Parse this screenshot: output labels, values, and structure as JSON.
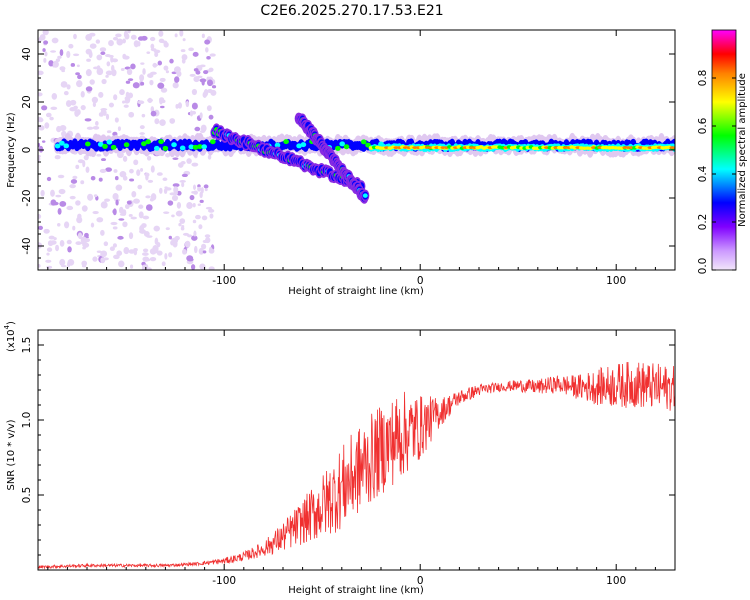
{
  "title": "C2E6.2025.270.17.53.E21",
  "chart_data": [
    {
      "type": "heatmap",
      "title": "C2E6.2025.270.17.53.E21",
      "xlabel": "Height of straight line (km)",
      "ylabel": "Frequency (Hz)",
      "xlim": [
        -195,
        130
      ],
      "ylim": [
        -50,
        50
      ],
      "xticks": [
        -100,
        0,
        100
      ],
      "xtick_labels": [
        "-100",
        "0",
        "100"
      ],
      "yticks": [
        -40,
        -20,
        0,
        20,
        40
      ],
      "ytick_labels": [
        "-40",
        "-20",
        "0",
        "20",
        "40"
      ],
      "colorbar": {
        "label": "Normalized spectral amplitude",
        "range": [
          0,
          1
        ],
        "ticks": [
          0,
          0.2,
          0.4,
          0.6,
          0.8
        ],
        "tick_labels": [
          "0.0",
          "0.2",
          "0.4",
          "0.6",
          "0.8"
        ],
        "colormap": [
          "#e0c8f0",
          "#8a2be2",
          "#0000ff",
          "#00ffff",
          "#00ff00",
          "#ffff00",
          "#ff8000",
          "#ff0000",
          "#ff00ff"
        ]
      },
      "features": [
        {
          "name": "main-band",
          "x": [
            -185,
            130
          ],
          "freq_hz": [
            2,
            2
          ],
          "amplitude": "0.2-0.6"
        },
        {
          "name": "high-amplitude-segment",
          "x": [
            -25,
            130
          ],
          "freq_hz": [
            1,
            1
          ],
          "amplitude": "0.6-0.9"
        },
        {
          "name": "descending-branch-1",
          "x": [
            -105,
            -30
          ],
          "freq_hz": [
            8,
            -15
          ],
          "amplitude": "0.3-0.5"
        },
        {
          "name": "descending-branch-2",
          "x": [
            -62,
            -28
          ],
          "freq_hz": [
            14,
            -20
          ],
          "amplitude": "0.3-0.5"
        },
        {
          "name": "diffuse-noise-region",
          "x": [
            -195,
            -105
          ],
          "freq_hz": [
            -50,
            50
          ],
          "amplitude": "0.0-0.1"
        }
      ]
    },
    {
      "type": "line",
      "xlabel": "Height of straight line (km)",
      "ylabel": "SNR (10 * v/v)",
      "multiplier_label": "(x10",
      "multiplier_exp": "4",
      "xlim": [
        -195,
        130
      ],
      "ylim": [
        0,
        1.6
      ],
      "xticks": [
        -100,
        0,
        100
      ],
      "xtick_labels": [
        "-100",
        "0",
        "100"
      ],
      "yticks": [
        0.5,
        1.0,
        1.5
      ],
      "ytick_labels": [
        "0.5",
        "1.0",
        "1.5"
      ],
      "color": "#f03030",
      "series": [
        {
          "name": "SNR",
          "x": [
            -195,
            -170,
            -150,
            -130,
            -115,
            -100,
            -90,
            -80,
            -70,
            -60,
            -50,
            -40,
            -30,
            -20,
            -10,
            0,
            10,
            20,
            30,
            40,
            50,
            60,
            70,
            80,
            90,
            100,
            110,
            120,
            130
          ],
          "y": [
            0.02,
            0.03,
            0.03,
            0.03,
            0.04,
            0.06,
            0.09,
            0.14,
            0.22,
            0.32,
            0.42,
            0.55,
            0.68,
            0.8,
            0.9,
            0.95,
            1.05,
            1.15,
            1.2,
            1.22,
            1.23,
            1.22,
            1.24,
            1.22,
            1.22,
            1.23,
            1.24,
            1.22,
            1.21
          ],
          "spread": [
            0.01,
            0.01,
            0.01,
            0.01,
            0.01,
            0.02,
            0.03,
            0.05,
            0.1,
            0.15,
            0.22,
            0.28,
            0.3,
            0.3,
            0.3,
            0.22,
            0.1,
            0.05,
            0.04,
            0.03,
            0.04,
            0.05,
            0.06,
            0.08,
            0.12,
            0.15,
            0.16,
            0.16,
            0.15
          ]
        }
      ]
    }
  ]
}
